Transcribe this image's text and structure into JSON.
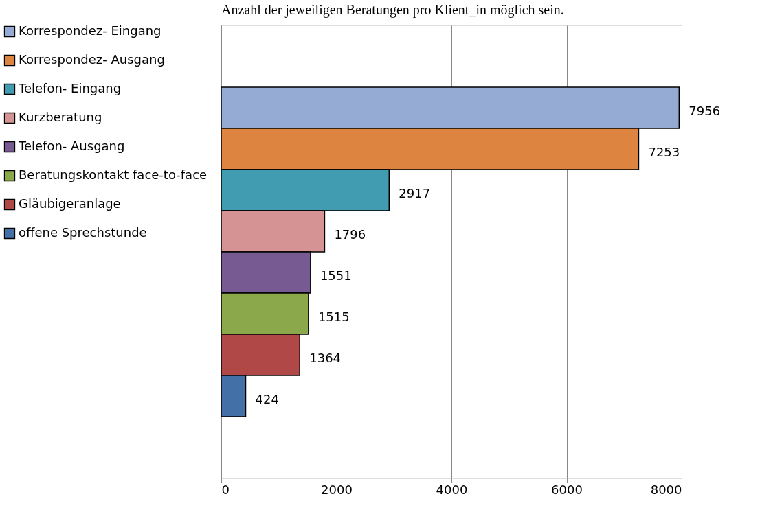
{
  "chart_data": {
    "type": "bar",
    "orientation": "horizontal",
    "annotations": [
      "Anzahl der jeweiligen Beratungen pro Klient_in möglich sein."
    ],
    "categories": [
      null
    ],
    "series": [
      {
        "name": "Korrespondez- Eingang",
        "color": "#95abd4",
        "values": [
          7956
        ]
      },
      {
        "name": "Korrespondez- Ausgang",
        "color": "#dd8540",
        "values": [
          7253
        ]
      },
      {
        "name": "Telefon- Eingang",
        "color": "#419bb1",
        "values": [
          2917
        ]
      },
      {
        "name": "Kurzberatung",
        "color": "#d59493",
        "values": [
          1796
        ]
      },
      {
        "name": "Telefon- Ausgang",
        "color": "#775a92",
        "values": [
          1551
        ]
      },
      {
        "name": "Beratungskontakt face-to-face",
        "color": "#8ba94b",
        "values": [
          1515
        ]
      },
      {
        "name": "Gläubigeranlage",
        "color": "#b04848",
        "values": [
          1364
        ]
      },
      {
        "name": "offene Sprechstunde",
        "color": "#4470a8",
        "values": [
          424
        ]
      }
    ],
    "xlim": [
      0,
      8000
    ],
    "xticks": [
      0,
      2000,
      4000,
      6000,
      8000
    ],
    "grid": "x",
    "legend": "left",
    "data_labels": true
  }
}
